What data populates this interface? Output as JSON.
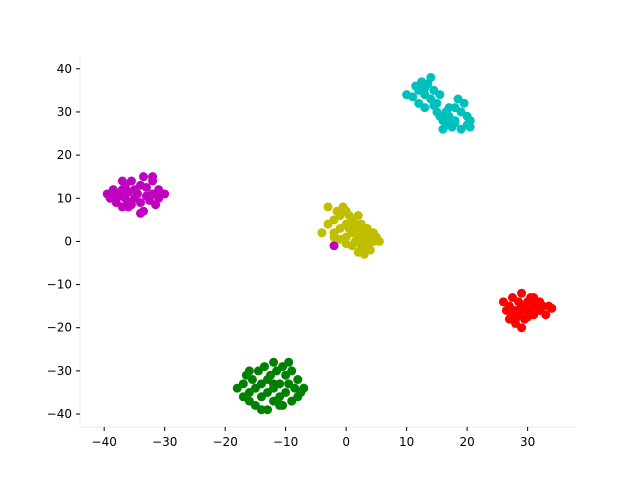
{
  "chart_data": {
    "type": "scatter",
    "title": "",
    "xlabel": "",
    "ylabel": "",
    "xlim": [
      -44,
      38
    ],
    "ylim": [
      -43,
      42.5
    ],
    "xticks": [
      -40,
      -30,
      -20,
      -10,
      0,
      10,
      20,
      30
    ],
    "yticks": [
      -40,
      -30,
      -20,
      -10,
      0,
      10,
      20,
      30,
      40
    ],
    "grid": false,
    "legend": "none",
    "series": [
      {
        "color": "#bf00bf",
        "points": [
          [
            -39.5,
            11
          ],
          [
            -39,
            10
          ],
          [
            -38.5,
            12
          ],
          [
            -38,
            9
          ],
          [
            -38,
            11
          ],
          [
            -37.5,
            10.5
          ],
          [
            -37,
            8
          ],
          [
            -37,
            12
          ],
          [
            -36.5,
            13
          ],
          [
            -36.5,
            10
          ],
          [
            -36,
            9
          ],
          [
            -36,
            11.5
          ],
          [
            -35.5,
            14
          ],
          [
            -35.5,
            8.5
          ],
          [
            -35,
            10
          ],
          [
            -35,
            12
          ],
          [
            -34.5,
            11
          ],
          [
            -34,
            13
          ],
          [
            -34,
            9
          ],
          [
            -33.5,
            15
          ],
          [
            -33.5,
            7
          ],
          [
            -33,
            10.5
          ],
          [
            -33,
            12.5
          ],
          [
            -32.5,
            9.5
          ],
          [
            -32,
            11
          ],
          [
            -32,
            14
          ],
          [
            -31.5,
            8.5
          ],
          [
            -31,
            12
          ],
          [
            -31,
            10
          ],
          [
            -30.5,
            11
          ],
          [
            -30,
            11
          ],
          [
            -34,
            6.5
          ],
          [
            -36,
            8
          ],
          [
            -32,
            15
          ],
          [
            -37,
            14
          ],
          [
            -2,
            -1
          ]
        ]
      },
      {
        "color": "#bfbf00",
        "points": [
          [
            -3,
            4
          ],
          [
            -3,
            8
          ],
          [
            -2,
            5
          ],
          [
            -2,
            2
          ],
          [
            -1.5,
            7
          ],
          [
            -1,
            3
          ],
          [
            -1,
            6
          ],
          [
            -0.5,
            8
          ],
          [
            0,
            4
          ],
          [
            0,
            1
          ],
          [
            0,
            7
          ],
          [
            0.5,
            3
          ],
          [
            0.5,
            6
          ],
          [
            1,
            2
          ],
          [
            1,
            5
          ],
          [
            1.5,
            0
          ],
          [
            1.5,
            4
          ],
          [
            2,
            3
          ],
          [
            2,
            1
          ],
          [
            2,
            6
          ],
          [
            2.5,
            -1
          ],
          [
            2.5,
            4
          ],
          [
            3,
            2
          ],
          [
            3,
            0
          ],
          [
            3,
            -2
          ],
          [
            3.5,
            3
          ],
          [
            3.5,
            -1
          ],
          [
            4,
            1
          ],
          [
            4,
            -2
          ],
          [
            4.5,
            2
          ],
          [
            4.5,
            0
          ],
          [
            5,
            1
          ],
          [
            5.5,
            0
          ],
          [
            -4,
            2
          ],
          [
            -1,
            0.5
          ],
          [
            0,
            -0.5
          ],
          [
            1,
            -1
          ],
          [
            2,
            -2.5
          ],
          [
            3,
            -3
          ],
          [
            -2,
            1
          ]
        ]
      },
      {
        "color": "#00bfbf",
        "points": [
          [
            10,
            34
          ],
          [
            11,
            33.5
          ],
          [
            11.5,
            36
          ],
          [
            12,
            32
          ],
          [
            12,
            35
          ],
          [
            12.5,
            37
          ],
          [
            13,
            34
          ],
          [
            13,
            31
          ],
          [
            13.5,
            36.5
          ],
          [
            14,
            33
          ],
          [
            14,
            38
          ],
          [
            14.5,
            35
          ],
          [
            15,
            32
          ],
          [
            15,
            30
          ],
          [
            15.5,
            29
          ],
          [
            16,
            28
          ],
          [
            16,
            26
          ],
          [
            16.5,
            30
          ],
          [
            17,
            27
          ],
          [
            17,
            29
          ],
          [
            17.5,
            26.5
          ],
          [
            18,
            31
          ],
          [
            18,
            28
          ],
          [
            18.5,
            33
          ],
          [
            19,
            30
          ],
          [
            19,
            26
          ],
          [
            19.5,
            32
          ],
          [
            20,
            27
          ],
          [
            20,
            29
          ],
          [
            20.5,
            28
          ],
          [
            20.5,
            26.5
          ],
          [
            18,
            27.5
          ],
          [
            17,
            31
          ],
          [
            13,
            35.5
          ],
          [
            14.5,
            31.5
          ],
          [
            15.5,
            34
          ]
        ]
      },
      {
        "color": "#ff0000",
        "points": [
          [
            26,
            -14
          ],
          [
            26.5,
            -16
          ],
          [
            27,
            -15
          ],
          [
            27,
            -18
          ],
          [
            27.5,
            -13
          ],
          [
            28,
            -16
          ],
          [
            28,
            -19
          ],
          [
            28.5,
            -14
          ],
          [
            28.5,
            -17
          ],
          [
            29,
            -12
          ],
          [
            29,
            -15
          ],
          [
            29.5,
            -18
          ],
          [
            30,
            -14
          ],
          [
            30,
            -16
          ],
          [
            30.5,
            -13
          ],
          [
            31,
            -15
          ],
          [
            31,
            -17
          ],
          [
            31.5,
            -14
          ],
          [
            32,
            -16
          ],
          [
            32.5,
            -15
          ],
          [
            33,
            -17
          ],
          [
            33.5,
            -15
          ],
          [
            34,
            -15.5
          ],
          [
            28,
            -18
          ],
          [
            29,
            -20
          ],
          [
            30,
            -17.5
          ],
          [
            31,
            -13
          ],
          [
            27.5,
            -17
          ],
          [
            32,
            -14
          ],
          [
            29.5,
            -16
          ]
        ]
      },
      {
        "color": "#008000",
        "points": [
          [
            -18,
            -34
          ],
          [
            -17,
            -33
          ],
          [
            -17,
            -36
          ],
          [
            -16.5,
            -31
          ],
          [
            -16,
            -35
          ],
          [
            -16,
            -37
          ],
          [
            -15.5,
            -32
          ],
          [
            -15,
            -34
          ],
          [
            -15,
            -38
          ],
          [
            -14.5,
            -30
          ],
          [
            -14,
            -33
          ],
          [
            -14,
            -36
          ],
          [
            -13.5,
            -29
          ],
          [
            -13,
            -32
          ],
          [
            -13,
            -35
          ],
          [
            -13,
            -39
          ],
          [
            -12.5,
            -31
          ],
          [
            -12,
            -28
          ],
          [
            -12,
            -34
          ],
          [
            -12,
            -37
          ],
          [
            -11.5,
            -30
          ],
          [
            -11,
            -33
          ],
          [
            -11,
            -36
          ],
          [
            -10.5,
            -29
          ],
          [
            -10.5,
            -38
          ],
          [
            -10,
            -31
          ],
          [
            -10,
            -35
          ],
          [
            -9.5,
            -28
          ],
          [
            -9.5,
            -33
          ],
          [
            -9,
            -37
          ],
          [
            -9,
            -30
          ],
          [
            -8.5,
            -34
          ],
          [
            -8,
            -36
          ],
          [
            -8,
            -32
          ],
          [
            -7.5,
            -35
          ],
          [
            -7,
            -34
          ],
          [
            -11,
            -38
          ],
          [
            -14,
            -39
          ],
          [
            -16,
            -30
          ],
          [
            -12,
            -33
          ]
        ]
      }
    ]
  }
}
